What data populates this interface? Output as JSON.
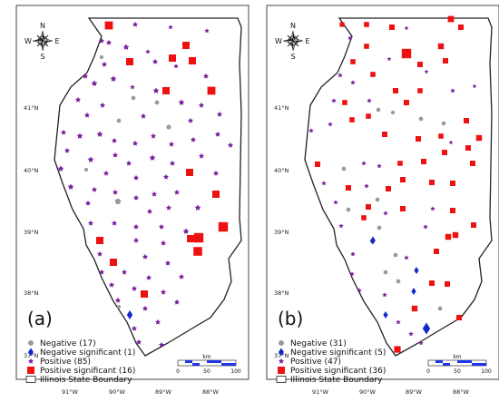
{
  "compass_labels": {
    "n": "N",
    "s": "S",
    "e": "E",
    "w": "W"
  },
  "lon_labels": [
    "91°W",
    "90°W",
    "89°W",
    "88°W"
  ],
  "lat_labels": [
    "41°N",
    "40°N",
    "39°N",
    "38°N",
    "37°N"
  ],
  "colors": {
    "negative": "#9a9a9a",
    "negative_significant": "#1226c9",
    "positive": "#7a1f9e",
    "positive_significant": "#ee1111",
    "boundary": "#222222"
  },
  "scale_bar": {
    "unit": "km",
    "ticks": [
      "0",
      "50",
      "100"
    ]
  },
  "panels": [
    {
      "label": "(a)",
      "legend": [
        {
          "key": "negative",
          "text": "Negative (17)"
        },
        {
          "key": "negative_significant",
          "text": "Negative significant (1)"
        },
        {
          "key": "positive",
          "text": "Positive (85)"
        },
        {
          "key": "positive_significant",
          "text": "Positive significant (16)"
        },
        {
          "key": "boundary",
          "text": "Illinois State Boundary"
        }
      ]
    },
    {
      "label": "(b)",
      "legend": [
        {
          "key": "negative",
          "text": "Negative (31)"
        },
        {
          "key": "negative_significant",
          "text": "Negative significant (5)"
        },
        {
          "key": "positive",
          "text": "Positive (47)"
        },
        {
          "key": "positive_significant",
          "text": "Positive significant (36)"
        },
        {
          "key": "boundary",
          "text": "Illinois State Boundary"
        }
      ]
    }
  ]
}
